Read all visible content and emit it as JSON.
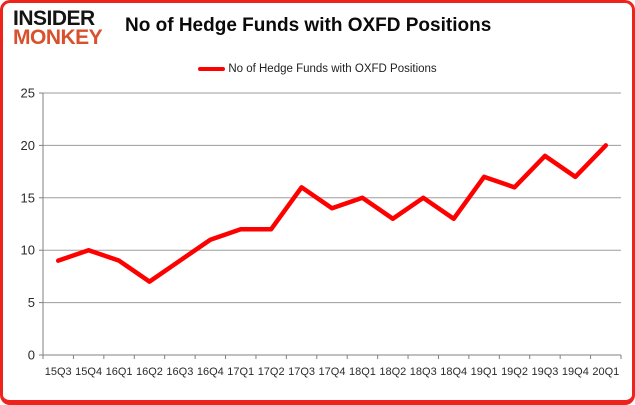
{
  "logo": {
    "line1": "INSIDER",
    "line2": "MONKEY",
    "line1_color": "#141414",
    "line2_color": "#d9502c"
  },
  "header": {
    "title": "No of Hedge Funds with OXFD Positions"
  },
  "legend": {
    "label": "No of Hedge Funds with OXFD Positions",
    "swatch_color": "#ff0000"
  },
  "chart_data": {
    "type": "line",
    "title": "No of Hedge Funds with OXFD Positions",
    "categories": [
      "15Q3",
      "15Q4",
      "16Q1",
      "16Q2",
      "16Q3",
      "16Q4",
      "17Q1",
      "17Q2",
      "17Q3",
      "17Q4",
      "18Q1",
      "18Q2",
      "18Q3",
      "18Q4",
      "19Q1",
      "19Q2",
      "19Q3",
      "19Q4",
      "20Q1"
    ],
    "series": [
      {
        "name": "No of Hedge Funds with OXFD Positions",
        "color": "#ff0000",
        "values": [
          9,
          10,
          9,
          7,
          9,
          11,
          12,
          12,
          16,
          14,
          15,
          13,
          15,
          13,
          17,
          16,
          19,
          17,
          20
        ]
      }
    ],
    "xlabel": "",
    "ylabel": "",
    "ylim": [
      0,
      25
    ],
    "yticks": [
      0,
      5,
      10,
      15,
      20,
      25
    ],
    "grid": true,
    "legend_position": "top-center"
  },
  "colors": {
    "frame_border": "#ee231b",
    "grid_line": "#9d9d9d",
    "axis_line": "#808080",
    "tick_label": "#2b2b2b",
    "series_line": "#ff0000"
  }
}
